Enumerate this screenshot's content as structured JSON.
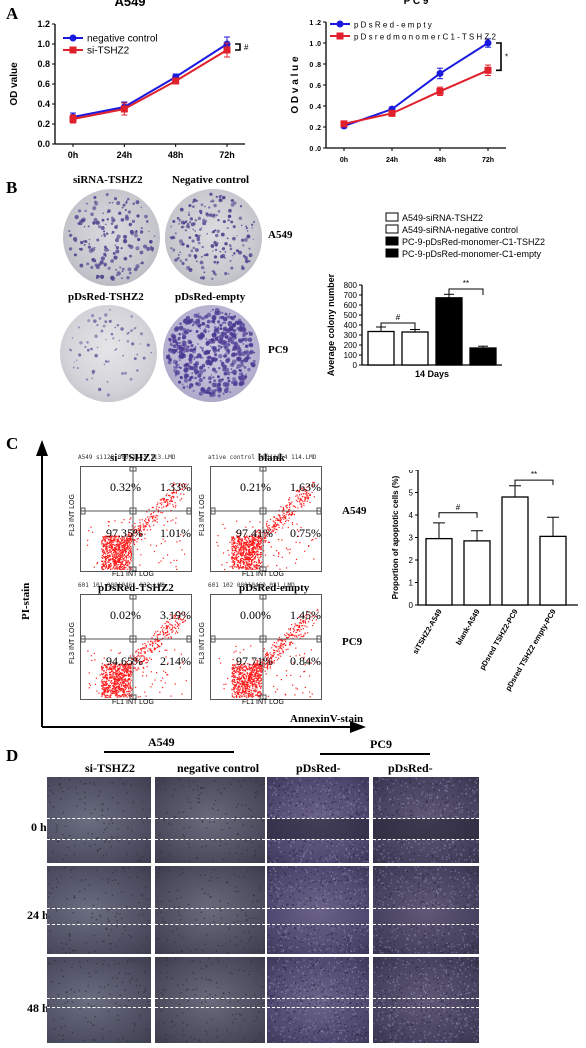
{
  "panels": {
    "A": "A",
    "B": "B",
    "C": "C",
    "D": "D"
  },
  "chart_data": [
    {
      "type": "line",
      "title": "A549",
      "ylabel": "OD value",
      "categories": [
        "0h",
        "24h",
        "48h",
        "72h"
      ],
      "ylim": [
        0.0,
        1.2
      ],
      "yticks": [
        "0.0",
        "0.2",
        "0.4",
        "0.6",
        "0.8",
        "1.0",
        "1.2"
      ],
      "series": [
        {
          "name": "negative control",
          "color": "#1a1adf",
          "values": [
            0.27,
            0.37,
            0.67,
            1.0
          ],
          "err": [
            0.04,
            0.05,
            0.03,
            0.07
          ]
        },
        {
          "name": "si-TSHZ2",
          "color": "#e0202a",
          "values": [
            0.25,
            0.35,
            0.63,
            0.94
          ],
          "err": [
            0.04,
            0.06,
            0.03,
            0.07
          ]
        }
      ],
      "annotation": "#"
    },
    {
      "type": "line",
      "title": "P C 9",
      "ylabel": "O D  v a l u e",
      "categories": [
        "0h",
        "24h",
        "48h",
        "72h"
      ],
      "ylim": [
        0.0,
        1.2
      ],
      "yticks": [
        "0 .0",
        "0 .2",
        "0 .4",
        "0 .6",
        "0 .8",
        "1 .0",
        "1 .2"
      ],
      "series": [
        {
          "name": "p D s R e d - e m p t y",
          "color": "#1a1adf",
          "values": [
            0.21,
            0.37,
            0.71,
            1.0
          ],
          "err": [
            0.02,
            0.02,
            0.05,
            0.04
          ]
        },
        {
          "name": "p D s r e d  m o n o m e r  C 1 - T S H Z 2",
          "color": "#e0202a",
          "values": [
            0.23,
            0.33,
            0.54,
            0.74
          ],
          "err": [
            0.02,
            0.02,
            0.04,
            0.05
          ]
        }
      ],
      "annotation": "*"
    },
    {
      "type": "bar",
      "ylabel": "Average colony number",
      "xlabel": "14 Days",
      "ylim": [
        0,
        800
      ],
      "yticks": [
        "0",
        "100",
        "200",
        "300",
        "400",
        "500",
        "600",
        "700",
        "800"
      ],
      "series": [
        {
          "name": "A549-siRNA-TSHZ2",
          "fill": "#ffffff",
          "value": 335,
          "err": 45
        },
        {
          "name": "A549-siRNA-negative control",
          "fill": "#ffffff",
          "value": 330,
          "err": 25
        },
        {
          "name": "PC-9-pDsRed-monomer-C1-TSHZ2",
          "fill": "#000000",
          "value": 672,
          "err": 35
        },
        {
          "name": "PC-9-pDsRed-monomer-C1-empty",
          "fill": "#000000",
          "value": 170,
          "err": 18
        }
      ],
      "annotations": [
        "#",
        "**"
      ]
    },
    {
      "type": "bar",
      "ylabel": "Proportion of apoptotic cells (%)",
      "ylim": [
        0,
        6
      ],
      "yticks": [
        "0",
        "1",
        "2",
        "3",
        "4",
        "5",
        "6"
      ],
      "categories": [
        "siTSHZ2-A549",
        "blank-A549",
        "pDsred TSHZ2-PC9",
        "pDsred TSHZ2 empty-PC9"
      ],
      "values": [
        2.95,
        2.85,
        4.8,
        3.05
      ],
      "err": [
        0.7,
        0.45,
        0.5,
        0.85
      ],
      "annotations": [
        "#",
        "**"
      ]
    }
  ],
  "colony": {
    "titles": [
      "siRNA-TSHZ2",
      "Negative control",
      "pDsRed-TSHZ2",
      "pDsRed-empty"
    ],
    "row_labels": [
      "A549",
      "PC9"
    ]
  },
  "flow": {
    "titles": [
      "si-TSHZ2",
      "blank",
      "pDsRed-TSHZ2",
      "pDsRed-empty"
    ],
    "headers": [
      "A549 si128 00011153 113.LMD",
      "ative control 00011154 114.LMD",
      "601 101 00010461 032.LMD",
      "601 102 00010460 031.LMD"
    ],
    "quadrants": [
      [
        "0.32%",
        "1.33%",
        "97.35%",
        "1.01%"
      ],
      [
        "0.21%",
        "1.63%",
        "97.41%",
        "0.75%"
      ],
      [
        "0.02%",
        "3.19%",
        "94.65%",
        "2.14%"
      ],
      [
        "0.00%",
        "1.45%",
        "97.71%",
        "0.84%"
      ]
    ],
    "x_axis": "FL1 INT LOG",
    "y_axis": "FL3 INT LOG",
    "row_labels": [
      "A549",
      "PC9"
    ],
    "pi_label": "PI-stain",
    "annexin_label": "AnnexinV-stain"
  },
  "wound": {
    "group_labels": [
      "A549",
      "PC9"
    ],
    "column_labels": [
      "si-TSHZ2",
      "negative control",
      "pDsRed-",
      "pDsRed-"
    ],
    "row_labels": [
      "0 h",
      "24 h",
      "48 h"
    ]
  }
}
